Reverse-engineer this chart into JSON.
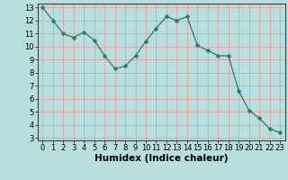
{
  "x": [
    0,
    1,
    2,
    3,
    4,
    5,
    6,
    7,
    8,
    9,
    10,
    11,
    12,
    13,
    14,
    15,
    16,
    17,
    18,
    19,
    20,
    21,
    22,
    23
  ],
  "y": [
    13.0,
    12.0,
    11.0,
    10.7,
    11.1,
    10.5,
    9.3,
    8.3,
    8.5,
    9.3,
    10.4,
    11.4,
    12.3,
    12.0,
    12.3,
    10.1,
    9.7,
    9.3,
    9.3,
    6.6,
    5.1,
    4.5,
    3.7,
    3.4
  ],
  "line_color": "#2d7a6a",
  "marker": "D",
  "marker_size": 2.5,
  "bg_color": "#b8dede",
  "grid_color": "#e8a0a0",
  "xlabel": "Humidex (Indice chaleur)",
  "xlim": [
    -0.5,
    23.5
  ],
  "ylim_min": 2.8,
  "ylim_max": 13.3,
  "yticks": [
    3,
    4,
    5,
    6,
    7,
    8,
    9,
    10,
    11,
    12,
    13
  ],
  "xticks": [
    0,
    1,
    2,
    3,
    4,
    5,
    6,
    7,
    8,
    9,
    10,
    11,
    12,
    13,
    14,
    15,
    16,
    17,
    18,
    19,
    20,
    21,
    22,
    23
  ],
  "xlabel_fontsize": 7.5,
  "tick_fontsize": 6.0
}
